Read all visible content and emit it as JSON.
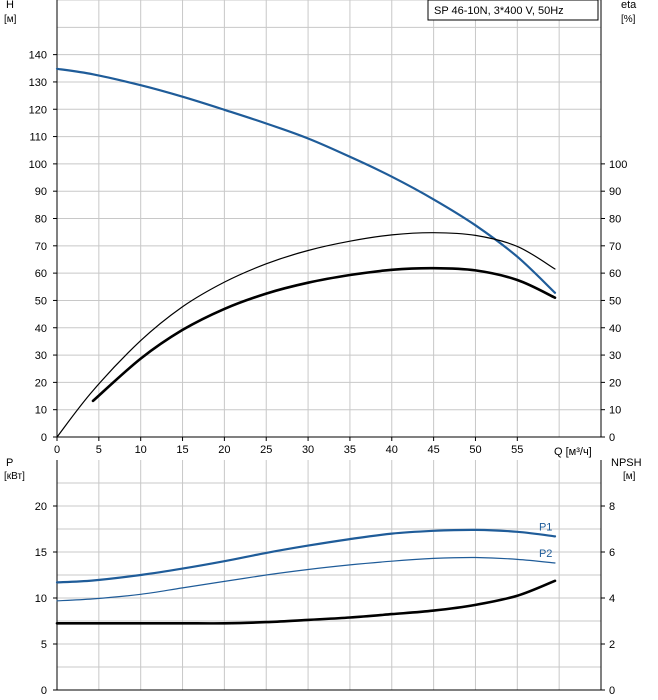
{
  "title": "SP 46-10N, 3*400 V, 50Hz",
  "colors": {
    "blue": "#1f5c99",
    "black": "#000000",
    "grid": "#c8c8c8"
  },
  "chart_data": [
    {
      "type": "line",
      "panel": "upper",
      "xlabel": "Q [м³/ч]",
      "ylabel_left": "H",
      "ylabel_left_unit": "[м]",
      "ylabel_right": "eta",
      "ylabel_right_unit": "[%]",
      "xlim": [
        0,
        65
      ],
      "ylim_left": [
        0,
        160
      ],
      "ylim_right": [
        0,
        160
      ],
      "x_ticks": [
        "0",
        "5",
        "10",
        "15",
        "20",
        "25",
        "30",
        "35",
        "40",
        "45",
        "50",
        "55"
      ],
      "y_ticks_left": [
        "0",
        "10",
        "20",
        "30",
        "40",
        "50",
        "60",
        "70",
        "80",
        "90",
        "100",
        "110",
        "120",
        "130",
        "140"
      ],
      "y_ticks_right": [
        "0",
        "10",
        "20",
        "30",
        "40",
        "50",
        "60",
        "70",
        "80",
        "90",
        "100"
      ],
      "grid": true,
      "series": [
        {
          "color": "#1f5c99",
          "axis": "left",
          "width": 2.2,
          "x": [
            0,
            4.3,
            10,
            15,
            20,
            25,
            30,
            35,
            40,
            45,
            50,
            55,
            59.5
          ],
          "y": [
            134.8,
            132.8,
            128.8,
            124.6,
            119.8,
            114.8,
            109.3,
            102.6,
            95.3,
            87.0,
            77.5,
            66.0,
            52.8
          ],
          "dense": [
            false,
            true,
            true,
            true,
            true,
            true,
            true,
            true,
            true,
            true,
            true,
            true,
            true
          ]
        },
        {
          "color": "#000000",
          "axis": "right",
          "width": 1.2,
          "x": [
            0,
            4.3,
            10,
            15,
            20,
            25,
            30,
            35,
            40,
            45,
            50,
            55,
            59.5
          ],
          "y": [
            0,
            17.0,
            35.3,
            47.7,
            56.7,
            63.4,
            68.3,
            71.7,
            74.0,
            74.8,
            73.8,
            69.8,
            61.5
          ]
        },
        {
          "color": "#000000",
          "axis": "right",
          "width": 2.6,
          "x": [
            4.3,
            10,
            15,
            20,
            25,
            30,
            35,
            40,
            45,
            50,
            55,
            59.5
          ],
          "y": [
            13.2,
            28.7,
            39.2,
            46.9,
            52.5,
            56.5,
            59.3,
            61.2,
            61.8,
            61.0,
            57.5,
            51.0
          ]
        }
      ]
    },
    {
      "type": "line",
      "panel": "lower",
      "ylabel_left": "P",
      "ylabel_left_unit": "[кВт]",
      "ylabel_right": "NPSH",
      "ylabel_right_unit": "[м]",
      "xlim": [
        0,
        65
      ],
      "ylim_left": [
        0,
        25
      ],
      "ylim_right": [
        0,
        10
      ],
      "y_ticks_left": [
        "0",
        "5",
        "10",
        "15",
        "20"
      ],
      "y_ticks_right": [
        "0",
        "2",
        "4",
        "6",
        "8"
      ],
      "grid": true,
      "series": [
        {
          "name": "P1",
          "color": "#1f5c99",
          "axis": "left",
          "width": 2.2,
          "x": [
            0,
            4.3,
            10,
            15,
            20,
            25,
            30,
            35,
            40,
            45,
            50,
            55,
            59.5
          ],
          "y": [
            11.7,
            11.9,
            12.5,
            13.2,
            14.0,
            14.9,
            15.7,
            16.4,
            17.0,
            17.3,
            17.4,
            17.2,
            16.7
          ]
        },
        {
          "name": "P2",
          "color": "#1f5c99",
          "axis": "left",
          "width": 1.2,
          "x": [
            0,
            4.3,
            10,
            15,
            20,
            25,
            30,
            35,
            40,
            45,
            50,
            55,
            59.5
          ],
          "y": [
            9.7,
            9.9,
            10.4,
            11.1,
            11.8,
            12.5,
            13.1,
            13.6,
            14.0,
            14.3,
            14.4,
            14.2,
            13.8
          ]
        },
        {
          "color": "#000000",
          "axis": "right",
          "width": 2.6,
          "x": [
            0,
            4.3,
            10,
            15,
            20,
            25,
            30,
            35,
            40,
            45,
            50,
            55,
            59.5
          ],
          "y": [
            2.9,
            2.9,
            2.9,
            2.9,
            2.9,
            2.95,
            3.05,
            3.15,
            3.3,
            3.45,
            3.7,
            4.1,
            4.75
          ]
        }
      ]
    }
  ]
}
